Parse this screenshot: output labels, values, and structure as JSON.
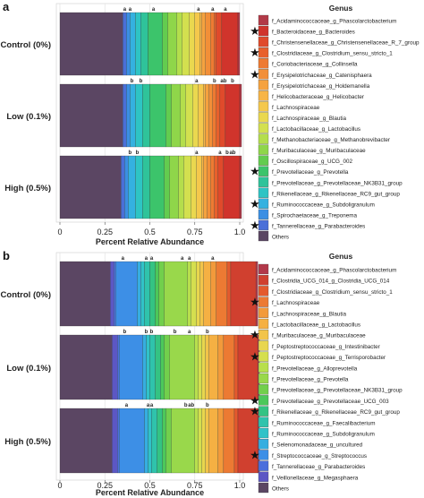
{
  "chart_data": [
    {
      "panel": "a",
      "type": "bar",
      "orientation": "horizontal",
      "stacked": true,
      "xlabel": "Percent Relative Abundance",
      "xlim": [
        0,
        1
      ],
      "xticks": [
        "0",
        "0.25",
        "0.5",
        "0.75",
        "1.0"
      ],
      "grid": true,
      "categories": [
        "Control (0%)",
        "Low (0.1%)",
        "High (0.5%)"
      ],
      "legend": {
        "title": "Genus",
        "placement": "right"
      },
      "genera": [
        {
          "name": "f_Acidaminococcaceae_g_Phascolarctobacterium",
          "color": "#b23a48",
          "star": false,
          "values": [
            0.01,
            0.01,
            0.01
          ]
        },
        {
          "name": "f_Bacteroidaceae_g_Bacteroides",
          "color": "#d0342c",
          "star": true,
          "values": [
            0.09,
            0.08,
            0.09
          ]
        },
        {
          "name": "f_Christensenellaceae_g_Christensenellaceae_R_7_group",
          "color": "#e04a2b",
          "star": false,
          "values": [
            0.03,
            0.03,
            0.03
          ]
        },
        {
          "name": "f_Clostridiaceae_g_Clostridium_sensu_stricto_1",
          "color": "#e8602c",
          "star": true,
          "values": [
            0.01,
            0.02,
            0.02
          ]
        },
        {
          "name": "f_Coriobacteriaceae_g_Collinsella",
          "color": "#ee7a32",
          "star": false,
          "values": [
            0.02,
            0.02,
            0.02
          ]
        },
        {
          "name": "f_Erysipelotrichaceae_g_Catenisphaera",
          "color": "#f28f38",
          "star": true,
          "values": [
            0.03,
            0.02,
            0.02
          ]
        },
        {
          "name": "f_Erysipelotrichaceae_g_Holdemanella",
          "color": "#f5a23f",
          "star": false,
          "values": [
            0.02,
            0.02,
            0.02
          ]
        },
        {
          "name": "f_Helicobacteraceae_g_Helicobacter",
          "color": "#f7b547",
          "star": false,
          "values": [
            0.01,
            0.01,
            0.01
          ]
        },
        {
          "name": "f_Lachnospiraceae",
          "color": "#f5c84c",
          "star": false,
          "values": [
            0.03,
            0.03,
            0.03
          ]
        },
        {
          "name": "f_Lachnospiraceae_g_Blautia",
          "color": "#ead84f",
          "star": false,
          "values": [
            0.03,
            0.03,
            0.03
          ]
        },
        {
          "name": "f_Lactobacillaceae_g_Lactobacillus",
          "color": "#d3e04f",
          "star": false,
          "values": [
            0.04,
            0.04,
            0.04
          ]
        },
        {
          "name": "f_Methanobacteriaceae_g_Methanobrevibacter",
          "color": "#b4de4c",
          "star": false,
          "values": [
            0.03,
            0.03,
            0.03
          ]
        },
        {
          "name": "f_Muribaculaceae_g_Muribaculaceae",
          "color": "#8fd64a",
          "star": false,
          "values": [
            0.05,
            0.05,
            0.05
          ]
        },
        {
          "name": "f_Oscillospiraceae_g_UCG_002",
          "color": "#63cc4f",
          "star": false,
          "values": [
            0.03,
            0.03,
            0.03
          ]
        },
        {
          "name": "f_Prevotellaceae_g_Prevotella",
          "color": "#3cc46b",
          "star": true,
          "values": [
            0.08,
            0.09,
            0.08
          ]
        },
        {
          "name": "f_Prevotellaceae_g_Prevotellaceae_NK3B31_group",
          "color": "#2fc39a",
          "star": false,
          "values": [
            0.04,
            0.04,
            0.04
          ]
        },
        {
          "name": "f_Rikenellaceae_g_Rikenellaceae_RC9_gut_group",
          "color": "#2ec4c4",
          "star": false,
          "values": [
            0.03,
            0.04,
            0.04
          ]
        },
        {
          "name": "f_Ruminococcaceae_g_Subdoligranulum",
          "color": "#34b1e0",
          "star": true,
          "values": [
            0.03,
            0.03,
            0.04
          ]
        },
        {
          "name": "f_Spirochaetaceae_g_Treponema",
          "color": "#3b8fe3",
          "star": false,
          "values": [
            0.02,
            0.02,
            0.02
          ]
        },
        {
          "name": "f_Tannerellaceae_g_Parabacteroides",
          "color": "#4a6fd8",
          "star": true,
          "values": [
            0.02,
            0.02,
            0.02
          ]
        },
        {
          "name": "Others",
          "color": "#5b4663",
          "star": false,
          "values": [
            0.35,
            0.35,
            0.34
          ]
        }
      ],
      "significance": [
        {
          "row": 0,
          "marks": [
            {
              "x": 0.36,
              "t": "a"
            },
            {
              "x": 0.39,
              "t": "a"
            },
            {
              "x": 0.52,
              "t": "a"
            },
            {
              "x": 0.77,
              "t": "a"
            },
            {
              "x": 0.85,
              "t": "a"
            },
            {
              "x": 0.92,
              "t": "a"
            }
          ]
        },
        {
          "row": 1,
          "marks": [
            {
              "x": 0.4,
              "t": "b"
            },
            {
              "x": 0.45,
              "t": "b"
            },
            {
              "x": 0.76,
              "t": "a"
            },
            {
              "x": 0.86,
              "t": "b"
            },
            {
              "x": 0.91,
              "t": "ab"
            },
            {
              "x": 0.96,
              "t": "b"
            }
          ]
        },
        {
          "row": 2,
          "marks": [
            {
              "x": 0.39,
              "t": "b"
            },
            {
              "x": 0.43,
              "t": "b"
            },
            {
              "x": 0.76,
              "t": "a"
            },
            {
              "x": 0.89,
              "t": "a"
            },
            {
              "x": 0.93,
              "t": "b"
            },
            {
              "x": 0.96,
              "t": "ab"
            }
          ]
        }
      ]
    },
    {
      "panel": "b",
      "type": "bar",
      "orientation": "horizontal",
      "stacked": true,
      "xlabel": "Percent Relative Abundance",
      "xlim": [
        0,
        1
      ],
      "xticks": [
        "0",
        "0.25",
        "0.5",
        "0.75",
        "1.0"
      ],
      "grid": true,
      "categories": [
        "Control (0%)",
        "Low (0.1%)",
        "High (0.5%)"
      ],
      "legend": {
        "title": "Genus",
        "placement": "right"
      },
      "genera": [
        {
          "name": "f_Acidaminococcaceae_g_Phascolarctobacterium",
          "color": "#b2384a",
          "star": false,
          "values": [
            0.01,
            0.01,
            0.01
          ]
        },
        {
          "name": "f_Clostridia_UCG_014_g_Clostridia_UCG_014",
          "color": "#d0402f",
          "star": false,
          "values": [
            0.14,
            0.11,
            0.11
          ]
        },
        {
          "name": "f_Clostridiaceae_g_Clostridium_sensu_stricto_1",
          "color": "#e45a2d",
          "star": false,
          "values": [
            0.02,
            0.02,
            0.02
          ]
        },
        {
          "name": "f_Lachnospiraceae",
          "color": "#ec7a33",
          "star": true,
          "values": [
            0.06,
            0.06,
            0.06
          ]
        },
        {
          "name": "f_Lachnospiraceae_g_Blautia",
          "color": "#f29a3b",
          "star": false,
          "values": [
            0.03,
            0.03,
            0.03
          ]
        },
        {
          "name": "f_Lactobacillaceae_g_Lactobacillus",
          "color": "#f5b043",
          "star": false,
          "values": [
            0.04,
            0.05,
            0.05
          ]
        },
        {
          "name": "f_Muribaculaceae_g_Muribaculaceae",
          "color": "#f2c44a",
          "star": true,
          "values": [
            0.02,
            0.02,
            0.02
          ]
        },
        {
          "name": "f_Peptostreptococcaceae_g_Intestinibacter",
          "color": "#e8d64e",
          "star": false,
          "values": [
            0.02,
            0.02,
            0.02
          ]
        },
        {
          "name": "f_Peptostreptococcaceae_g_Terrisporobacter",
          "color": "#d5df4f",
          "star": true,
          "values": [
            0.03,
            0.02,
            0.02
          ]
        },
        {
          "name": "f_Prevotellaceae_g_Alloprevotella",
          "color": "#b8df4d",
          "star": false,
          "values": [
            0.02,
            0.02,
            0.02
          ]
        },
        {
          "name": "f_Prevotellaceae_g_Prevotella",
          "color": "#99d84b",
          "star": false,
          "values": [
            0.13,
            0.14,
            0.13
          ]
        },
        {
          "name": "f_Prevotellaceae_g_Prevotellaceae_NK3B31_group",
          "color": "#72cf4c",
          "star": false,
          "values": [
            0.03,
            0.03,
            0.03
          ]
        },
        {
          "name": "f_Prevotellaceae_g_Prevotellaceae_UCG_003",
          "color": "#4cc85a",
          "star": true,
          "values": [
            0.02,
            0.02,
            0.02
          ]
        },
        {
          "name": "f_Rikenellaceae_g_Rikenellaceae_RC9_gut_group",
          "color": "#34c383",
          "star": true,
          "values": [
            0.03,
            0.03,
            0.03
          ]
        },
        {
          "name": "f_Ruminococcaceae_g_Faecalibacterium",
          "color": "#2fc3ac",
          "star": false,
          "values": [
            0.03,
            0.03,
            0.03
          ]
        },
        {
          "name": "f_Ruminococcaceae_g_Subdoligranulum",
          "color": "#31c2c8",
          "star": false,
          "values": [
            0.02,
            0.02,
            0.02
          ]
        },
        {
          "name": "f_Selenomonadaceae_g_uncultured",
          "color": "#36aee0",
          "star": false,
          "values": [
            0.02,
            0.02,
            0.02
          ]
        },
        {
          "name": "f_Streptococcaceae_g_Streptococcus",
          "color": "#3d8fe6",
          "star": true,
          "values": [
            0.12,
            0.13,
            0.14
          ]
        },
        {
          "name": "f_Tannerellaceae_g_Parabacteroides",
          "color": "#4c6fdc",
          "star": false,
          "values": [
            0.01,
            0.01,
            0.01
          ]
        },
        {
          "name": "f_Veillonellaceae_g_Megasphaera",
          "color": "#5c57c4",
          "star": false,
          "values": [
            0.02,
            0.03,
            0.03
          ]
        },
        {
          "name": "Others",
          "color": "#5b4663",
          "star": false,
          "values": [
            0.28,
            0.29,
            0.29
          ]
        }
      ],
      "significance": [
        {
          "row": 0,
          "marks": [
            {
              "x": 0.35,
              "t": "a"
            },
            {
              "x": 0.48,
              "t": "a"
            },
            {
              "x": 0.51,
              "t": "a"
            },
            {
              "x": 0.68,
              "t": "a"
            },
            {
              "x": 0.72,
              "t": "a"
            },
            {
              "x": 0.85,
              "t": "a"
            }
          ]
        },
        {
          "row": 1,
          "marks": [
            {
              "x": 0.36,
              "t": "b"
            },
            {
              "x": 0.48,
              "t": "b"
            },
            {
              "x": 0.51,
              "t": "b"
            },
            {
              "x": 0.64,
              "t": "b"
            },
            {
              "x": 0.72,
              "t": "a"
            },
            {
              "x": 0.82,
              "t": "b"
            }
          ]
        },
        {
          "row": 2,
          "marks": [
            {
              "x": 0.37,
              "t": "a"
            },
            {
              "x": 0.49,
              "t": "a"
            },
            {
              "x": 0.51,
              "t": "a"
            },
            {
              "x": 0.7,
              "t": "b"
            },
            {
              "x": 0.73,
              "t": "ab"
            },
            {
              "x": 0.82,
              "t": "b"
            }
          ]
        }
      ]
    }
  ]
}
